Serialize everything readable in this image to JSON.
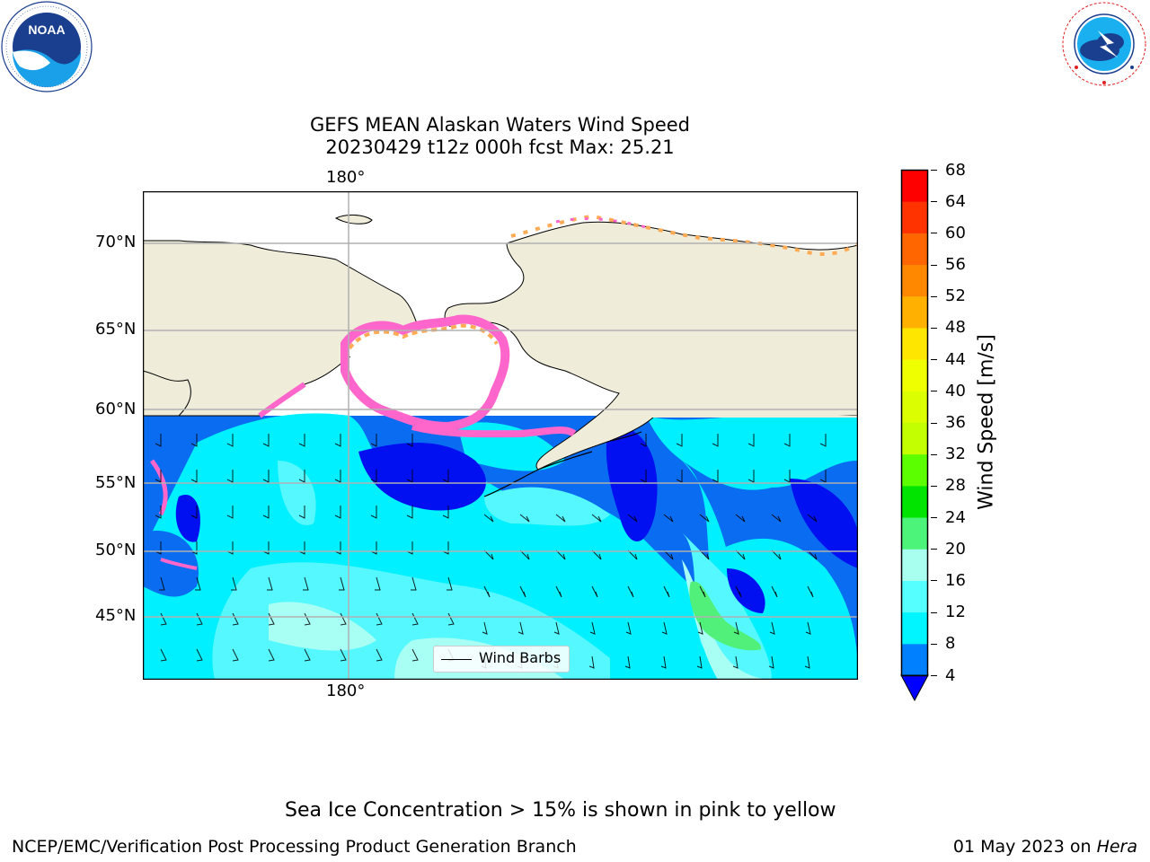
{
  "logos": {
    "left": {
      "name": "NOAA",
      "ring_text": "NATIONAL OCEANIC AND ATMOSPHERIC ADMINISTRATION · U.S. DEPARTMENT OF COMMERCE"
    },
    "right": {
      "ring_text": "NATIONAL WEATHER SERVICE"
    }
  },
  "title": {
    "line1": "GEFS MEAN Alaskan Waters Wind Speed",
    "line2": "20230429 t12z 000h fcst   Max: 25.21"
  },
  "map": {
    "lon_label_top": "180°",
    "lon_label_bottom": "180°",
    "lat_labels": [
      "70°N",
      "65°N",
      "60°N",
      "55°N",
      "50°N",
      "45°N"
    ],
    "legend_label": "Wind Barbs"
  },
  "colorbar": {
    "label": "Wind Speed [m/s]",
    "ticks": [
      "68",
      "64",
      "60",
      "56",
      "52",
      "48",
      "44",
      "40",
      "36",
      "32",
      "28",
      "24",
      "20",
      "16",
      "12",
      "8",
      "4"
    ],
    "colors_top_to_bottom": [
      "#ff0000",
      "#ff3300",
      "#ff6600",
      "#ff8800",
      "#ffb000",
      "#ffe600",
      "#f0ff00",
      "#dcff00",
      "#c4ff00",
      "#5cff00",
      "#00e400",
      "#4cf57a",
      "#a8fff0",
      "#55ffff",
      "#00f5ff",
      "#0080ff"
    ],
    "extend_color": "#0000ff"
  },
  "colors": {
    "land": "#efecd9",
    "ice_free_open_water": "#ffffff",
    "sea_ice_pink": "#ff66cc",
    "sea_ice_orange": "#ffaa55",
    "blue_4_8": "#0a6cf0",
    "deep_blue": "#0010f0",
    "cyan_8_12": "#00f0ff",
    "cyan_12_16": "#55f8ff",
    "light_cyan_16_20": "#a8fff4",
    "green_20_24": "#50f07a",
    "grid": "#b0b0b0"
  },
  "notes": {
    "sea_ice": "Sea Ice Concentration > 15% is shown in pink to yellow"
  },
  "footer": {
    "left": "NCEP/EMC/Verification Post Processing Product Generation Branch",
    "right_date": "01 May 2023 on",
    "right_host": "Hera"
  }
}
